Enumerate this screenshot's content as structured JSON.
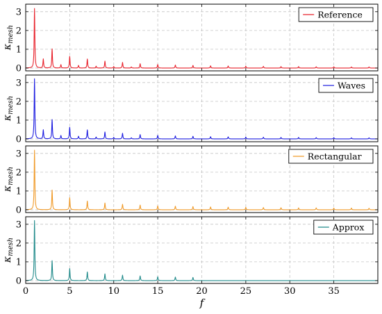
{
  "chart_data": [
    {
      "type": "line",
      "panel": "Reference",
      "series": [
        {
          "name": "Reference",
          "color": "#e8212b"
        }
      ],
      "ylabel_main": "κ",
      "ylabel_sub": "mesh",
      "yticks": [
        "0",
        "1",
        "2",
        "3"
      ],
      "ylim": [
        -0.15,
        3.4
      ],
      "xlim": [
        0,
        40
      ],
      "grid": true,
      "legend_position": "top-right",
      "peaks": [
        {
          "x": 1,
          "y": 3.17
        },
        {
          "x": 2,
          "y": 0.48
        },
        {
          "x": 3,
          "y": 1.02
        },
        {
          "x": 4,
          "y": 0.18
        },
        {
          "x": 5,
          "y": 0.62
        },
        {
          "x": 6,
          "y": 0.14
        },
        {
          "x": 7,
          "y": 0.48
        },
        {
          "x": 8,
          "y": 0.1
        },
        {
          "x": 9,
          "y": 0.37
        },
        {
          "x": 10,
          "y": 0.08
        },
        {
          "x": 11,
          "y": 0.3
        },
        {
          "x": 12,
          "y": 0.06
        },
        {
          "x": 13,
          "y": 0.23
        },
        {
          "x": 15,
          "y": 0.19
        },
        {
          "x": 17,
          "y": 0.16
        },
        {
          "x": 19,
          "y": 0.14
        },
        {
          "x": 21,
          "y": 0.12
        },
        {
          "x": 23,
          "y": 0.11
        },
        {
          "x": 25,
          "y": 0.1
        },
        {
          "x": 27,
          "y": 0.09
        },
        {
          "x": 29,
          "y": 0.08
        },
        {
          "x": 31,
          "y": 0.08
        },
        {
          "x": 33,
          "y": 0.07
        },
        {
          "x": 35,
          "y": 0.07
        },
        {
          "x": 37,
          "y": 0.06
        },
        {
          "x": 39,
          "y": 0.06
        }
      ]
    },
    {
      "type": "line",
      "panel": "Waves",
      "series": [
        {
          "name": "Waves",
          "color": "#1c1ce0"
        }
      ],
      "ylabel_main": "κ",
      "ylabel_sub": "mesh",
      "yticks": [
        "0",
        "1",
        "2",
        "3"
      ],
      "ylim": [
        -0.15,
        3.4
      ],
      "xlim": [
        0,
        40
      ],
      "grid": true,
      "legend_position": "top-right",
      "peaks": [
        {
          "x": 1,
          "y": 3.2
        },
        {
          "x": 2,
          "y": 0.48
        },
        {
          "x": 3,
          "y": 1.03
        },
        {
          "x": 4,
          "y": 0.18
        },
        {
          "x": 5,
          "y": 0.62
        },
        {
          "x": 6,
          "y": 0.14
        },
        {
          "x": 7,
          "y": 0.48
        },
        {
          "x": 8,
          "y": 0.1
        },
        {
          "x": 9,
          "y": 0.37
        },
        {
          "x": 10,
          "y": 0.08
        },
        {
          "x": 11,
          "y": 0.3
        },
        {
          "x": 12,
          "y": 0.06
        },
        {
          "x": 13,
          "y": 0.23
        },
        {
          "x": 15,
          "y": 0.19
        },
        {
          "x": 17,
          "y": 0.16
        },
        {
          "x": 19,
          "y": 0.14
        },
        {
          "x": 21,
          "y": 0.12
        },
        {
          "x": 23,
          "y": 0.11
        },
        {
          "x": 25,
          "y": 0.1
        },
        {
          "x": 27,
          "y": 0.09
        },
        {
          "x": 29,
          "y": 0.08
        },
        {
          "x": 31,
          "y": 0.08
        },
        {
          "x": 33,
          "y": 0.07
        },
        {
          "x": 35,
          "y": 0.07
        },
        {
          "x": 37,
          "y": 0.06
        },
        {
          "x": 39,
          "y": 0.06
        }
      ]
    },
    {
      "type": "line",
      "panel": "Rectangular",
      "series": [
        {
          "name": "Rectangular",
          "color": "#f09a28"
        }
      ],
      "ylabel_main": "κ",
      "ylabel_sub": "mesh",
      "yticks": [
        "0",
        "1",
        "2",
        "3"
      ],
      "ylim": [
        -0.15,
        3.4
      ],
      "xlim": [
        0,
        40
      ],
      "grid": true,
      "legend_position": "top-right",
      "peaks": [
        {
          "x": 1,
          "y": 3.17
        },
        {
          "x": 3,
          "y": 1.05
        },
        {
          "x": 5,
          "y": 0.64
        },
        {
          "x": 7,
          "y": 0.46
        },
        {
          "x": 9,
          "y": 0.36
        },
        {
          "x": 11,
          "y": 0.29
        },
        {
          "x": 13,
          "y": 0.25
        },
        {
          "x": 15,
          "y": 0.21
        },
        {
          "x": 17,
          "y": 0.19
        },
        {
          "x": 19,
          "y": 0.17
        },
        {
          "x": 21,
          "y": 0.15
        },
        {
          "x": 23,
          "y": 0.14
        },
        {
          "x": 25,
          "y": 0.13
        },
        {
          "x": 27,
          "y": 0.12
        },
        {
          "x": 29,
          "y": 0.11
        },
        {
          "x": 31,
          "y": 0.1
        },
        {
          "x": 33,
          "y": 0.1
        },
        {
          "x": 35,
          "y": 0.09
        },
        {
          "x": 37,
          "y": 0.09
        },
        {
          "x": 39,
          "y": 0.08
        }
      ]
    },
    {
      "type": "line",
      "panel": "Approx",
      "series": [
        {
          "name": "Approx",
          "color": "#1f8a8a"
        }
      ],
      "ylabel_main": "κ",
      "ylabel_sub": "mesh",
      "yticks": [
        "0",
        "1",
        "2",
        "3"
      ],
      "ylim": [
        -0.15,
        3.4
      ],
      "xlim": [
        0,
        40
      ],
      "xticks": [
        "0",
        "5",
        "10",
        "15",
        "20",
        "25",
        "30",
        "35"
      ],
      "xlabel": "f",
      "grid": true,
      "legend_position": "top-right",
      "peaks": [
        {
          "x": 1,
          "y": 3.2
        },
        {
          "x": 3,
          "y": 1.06
        },
        {
          "x": 5,
          "y": 0.64
        },
        {
          "x": 7,
          "y": 0.46
        },
        {
          "x": 9,
          "y": 0.36
        },
        {
          "x": 11,
          "y": 0.29
        },
        {
          "x": 13,
          "y": 0.25
        },
        {
          "x": 15,
          "y": 0.21
        },
        {
          "x": 17,
          "y": 0.19
        },
        {
          "x": 19,
          "y": 0.17
        }
      ]
    }
  ]
}
